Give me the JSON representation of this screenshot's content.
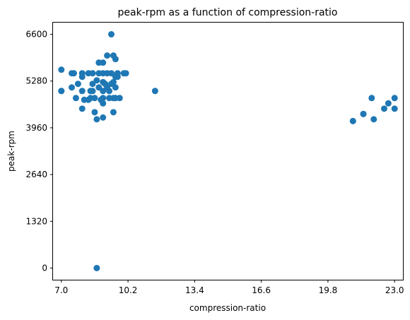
{
  "chart_data": {
    "type": "scatter",
    "title": "peak-rpm as a function of compression-ratio",
    "xlabel": "compression-ratio",
    "ylabel": "peak-rpm",
    "xlim": [
      6.6,
      23.4
    ],
    "ylim": [
      -330,
      6930
    ],
    "xticks": [
      7.0,
      10.2,
      13.4,
      16.6,
      19.8,
      23.0
    ],
    "xtick_labels": [
      "7.0",
      "10.2",
      "13.4",
      "16.6",
      "19.8",
      "23.0"
    ],
    "yticks": [
      0,
      1320,
      2640,
      3960,
      5280,
      6600
    ],
    "ytick_labels": [
      "0",
      "1320",
      "2640",
      "3960",
      "5280",
      "6600"
    ],
    "grid": false,
    "marker_color": "#1f77b4",
    "points": [
      [
        7.0,
        5600
      ],
      [
        7.0,
        5000
      ],
      [
        7.0,
        5000
      ],
      [
        7.5,
        5500
      ],
      [
        7.5,
        5100
      ],
      [
        7.6,
        5500
      ],
      [
        7.7,
        4800
      ],
      [
        7.8,
        5200
      ],
      [
        8.0,
        5400
      ],
      [
        8.0,
        5500
      ],
      [
        8.0,
        5000
      ],
      [
        8.0,
        4500
      ],
      [
        8.1,
        4750
      ],
      [
        8.3,
        5500
      ],
      [
        8.3,
        4750
      ],
      [
        8.4,
        5000
      ],
      [
        8.4,
        4800
      ],
      [
        8.5,
        5000
      ],
      [
        8.5,
        5200
      ],
      [
        8.5,
        5500
      ],
      [
        8.6,
        4800
      ],
      [
        8.6,
        4400
      ],
      [
        8.7,
        4200
      ],
      [
        8.7,
        5300
      ],
      [
        8.7,
        0
      ],
      [
        8.8,
        5800
      ],
      [
        8.8,
        5500
      ],
      [
        8.8,
        5100
      ],
      [
        8.9,
        4750
      ],
      [
        9.0,
        5800
      ],
      [
        9.0,
        5250
      ],
      [
        9.0,
        5000
      ],
      [
        9.0,
        4800
      ],
      [
        9.0,
        4650
      ],
      [
        9.0,
        4250
      ],
      [
        9.0,
        5500
      ],
      [
        9.1,
        5200
      ],
      [
        9.2,
        6000
      ],
      [
        9.2,
        5500
      ],
      [
        9.2,
        5100
      ],
      [
        9.3,
        4800
      ],
      [
        9.3,
        5000
      ],
      [
        9.4,
        5200
      ],
      [
        9.4,
        6600
      ],
      [
        9.4,
        5500
      ],
      [
        9.5,
        6000
      ],
      [
        9.5,
        5250
      ],
      [
        9.5,
        4800
      ],
      [
        9.5,
        4400
      ],
      [
        9.6,
        5900
      ],
      [
        9.6,
        5400
      ],
      [
        9.6,
        5100
      ],
      [
        9.6,
        4800
      ],
      [
        9.7,
        5500
      ],
      [
        9.7,
        5400
      ],
      [
        9.8,
        4800
      ],
      [
        10.0,
        5500
      ],
      [
        10.1,
        5500
      ],
      [
        11.5,
        5000
      ],
      [
        21.0,
        4150
      ],
      [
        21.0,
        4150
      ],
      [
        21.5,
        4350
      ],
      [
        21.5,
        4350
      ],
      [
        21.9,
        4800
      ],
      [
        22.0,
        4200
      ],
      [
        22.5,
        4500
      ],
      [
        22.7,
        4650
      ],
      [
        23.0,
        4800
      ],
      [
        23.0,
        4500
      ]
    ]
  }
}
